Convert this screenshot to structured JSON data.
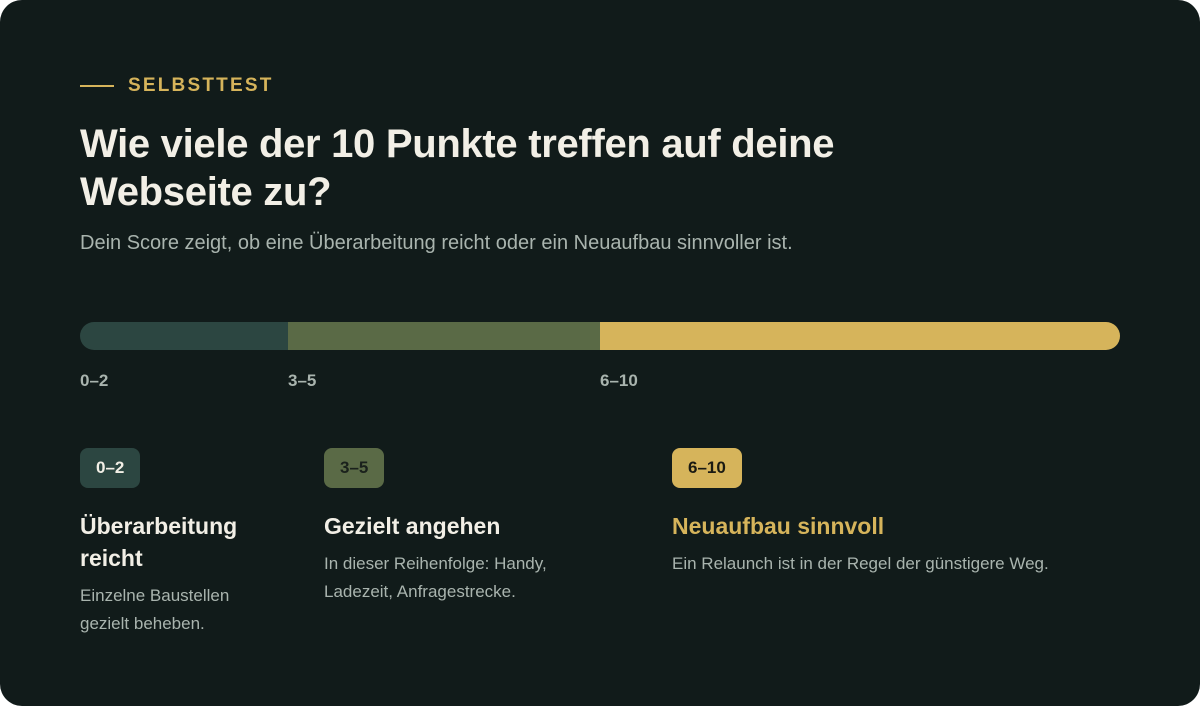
{
  "header": {
    "eyebrow": "SELBSTTEST",
    "title": "Wie viele der 10 Punkte treffen auf deine Webseite zu?",
    "subtitle": "Dein Score zeigt, ob eine Überarbeitung reicht oder ein Neuaufbau sinnvoller ist."
  },
  "scale": {
    "segments": [
      {
        "label": "0–2",
        "from": 0,
        "to": 2,
        "color": "#2c4641"
      },
      {
        "label": "3–5",
        "from": 3,
        "to": 5,
        "color": "#5a6a46"
      },
      {
        "label": "6–10",
        "from": 6,
        "to": 10,
        "color": "#d6b45b"
      }
    ]
  },
  "results": [
    {
      "badge": "0–2",
      "title": "Überarbeitung reicht",
      "description": "Einzelne Baustellen gezielt beheben."
    },
    {
      "badge": "3–5",
      "title": "Gezielt angehen",
      "description": "In dieser Reihenfolge: Handy, Ladezeit, Anfragestrecke."
    },
    {
      "badge": "6–10",
      "title": "Neuaufbau sinnvoll",
      "description": "Ein Relaunch ist in der Regel der günstigere Weg."
    }
  ],
  "colors": {
    "background": "#111b1a",
    "accent": "#d6b45b",
    "text": "#f2efe6",
    "muted": "#a9b4ae"
  }
}
